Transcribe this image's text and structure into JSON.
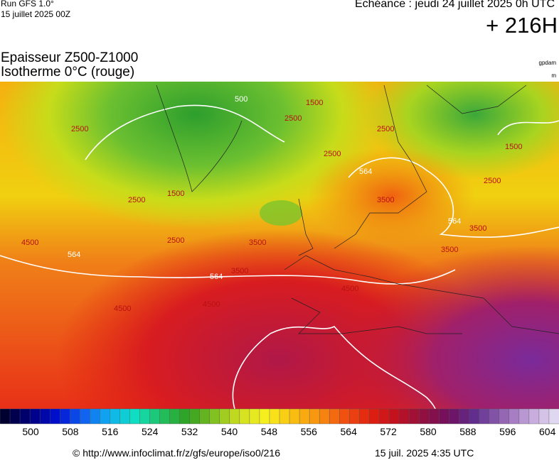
{
  "header": {
    "run": "Run GFS 1.0°",
    "run_date": "15 juillet 2025 00Z",
    "valid": "Echéance : jeudi 24 juillet 2025 0h UTC",
    "lead": "+ 216H"
  },
  "legend": {
    "title": "Epaisseur Z500-Z1000",
    "subtitle": "Isotherme 0°C (rouge)",
    "unit1": "gpdam",
    "unit2": "m"
  },
  "map": {
    "contour_labels": [
      "500",
      "1500",
      "2500",
      "2500",
      "1500",
      "2500",
      "2500",
      "3500",
      "2500",
      "564",
      "3500",
      "564",
      "3500",
      "4500",
      "4500",
      "564",
      "4500",
      "2500",
      "1500",
      "2500",
      "3500",
      "3500",
      "564",
      "4500"
    ]
  },
  "colorbar": {
    "labels": [
      "500",
      "508",
      "516",
      "524",
      "532",
      "540",
      "548",
      "556",
      "564",
      "572",
      "580",
      "588",
      "596",
      "604"
    ]
  },
  "footer": {
    "url": "© http://www.infoclimat.fr/z/gfs/europe/iso0/216",
    "timestamp": "15 juil. 2025  4:35 UTC"
  }
}
